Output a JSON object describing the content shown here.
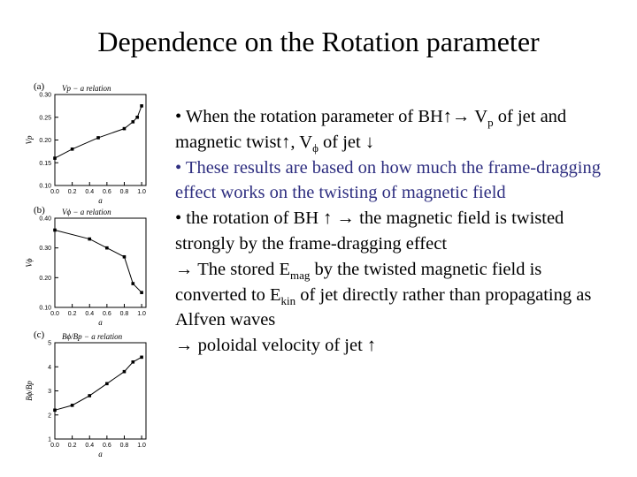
{
  "title": "Dependence on the Rotation parameter",
  "panels": [
    {
      "type": "line",
      "panel_label": "(a)",
      "title": "Vp − a relation",
      "ylabel": "Vp",
      "xlabel": "a",
      "x": [
        0.0,
        0.2,
        0.5,
        0.8,
        0.9,
        0.95,
        1.0
      ],
      "values": [
        0.16,
        0.18,
        0.205,
        0.225,
        0.24,
        0.25,
        0.275
      ],
      "xlim": [
        0,
        1.05
      ],
      "ylim": [
        0.1,
        0.3
      ],
      "xticks": [
        {
          "value": 0,
          "label": "0.0"
        },
        0.2,
        0.4,
        0.6,
        0.8,
        {
          "value": 1,
          "label": "1.0"
        }
      ],
      "yticks": [
        {
          "value": 0.1,
          "label": "0.10"
        },
        0.15,
        {
          "value": 0.2,
          "label": "0.20"
        },
        0.25,
        {
          "value": 0.3,
          "label": "0.30"
        }
      ]
    },
    {
      "type": "line",
      "panel_label": "(b)",
      "title": "Vϕ − a relation",
      "ylabel": "Vϕ",
      "xlabel": "a",
      "x": [
        0.0,
        0.4,
        0.6,
        0.8,
        0.9,
        1.0
      ],
      "values": [
        0.36,
        0.33,
        0.3,
        0.27,
        0.18,
        0.15
      ],
      "xlim": [
        0,
        1.05
      ],
      "ylim": [
        0.1,
        0.4
      ],
      "xticks": [
        {
          "value": 0,
          "label": "0.0"
        },
        0.2,
        0.4,
        0.6,
        0.8,
        {
          "value": 1,
          "label": "1.0"
        }
      ],
      "yticks": [
        {
          "value": 0.1,
          "label": "0.10"
        },
        {
          "value": 0.2,
          "label": "0.20"
        },
        {
          "value": 0.3,
          "label": "0.30"
        },
        {
          "value": 0.4,
          "label": "0.40"
        }
      ]
    },
    {
      "type": "line",
      "panel_label": "(c)",
      "title": "Bϕ/Bp − a relation",
      "ylabel": "Bϕ/Bp",
      "xlabel": "a",
      "x": [
        0.0,
        0.2,
        0.4,
        0.6,
        0.8,
        0.9,
        1.0
      ],
      "values": [
        2.2,
        2.4,
        2.8,
        3.3,
        3.8,
        4.2,
        4.4
      ],
      "xlim": [
        0,
        1.05
      ],
      "ylim": [
        1,
        5
      ],
      "xticks": [
        {
          "value": 0,
          "label": "0.0"
        },
        0.2,
        0.4,
        0.6,
        0.8,
        {
          "value": 1,
          "label": "1.0"
        }
      ],
      "yticks": [
        1,
        2,
        3,
        4,
        5
      ]
    }
  ],
  "bullets": [
    {
      "color": "#000000",
      "parts": [
        {
          "text": "• When the rotation parameter of BH↑→ V"
        },
        {
          "sub": "p"
        },
        {
          "text": " of jet and magnetic twist↑, V"
        },
        {
          "sub": "ϕ"
        },
        {
          "text": " of jet ↓"
        }
      ]
    },
    {
      "color": "#2e2e80",
      "parts": [
        {
          "text": "• These results are based on how much the frame-dragging effect works on the twisting of magnetic field"
        }
      ]
    },
    {
      "color": "#000000",
      "parts": [
        {
          "text": "• the rotation of BH ↑ → the magnetic field is twisted  strongly by the frame-dragging effect"
        }
      ]
    },
    {
      "color": "#000000",
      "parts": [
        {
          "text": "→ The stored E"
        },
        {
          "sub": "mag"
        },
        {
          "text": " by the twisted magnetic field is converted to E"
        },
        {
          "sub": "kin"
        },
        {
          "text": " of jet  directly rather than propagating as Alfven waves"
        }
      ]
    },
    {
      "color": "#000000",
      "parts": [
        {
          "text": "→ poloidal velocity of jet ↑"
        }
      ]
    }
  ]
}
